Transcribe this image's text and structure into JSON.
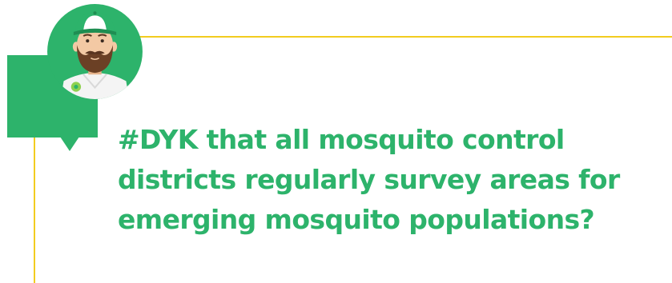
{
  "headline": {
    "lines": [
      "#DYK that all mosquito control",
      "districts regularly survey areas for",
      "emerging mosquito populations?"
    ]
  },
  "colors": {
    "brand_green": "#2db36b",
    "accent_yellow": "#f2cc1f",
    "skin": "#f3c9a4",
    "beard": "#6b4025"
  },
  "avatar": {
    "icon": "mascot-avatar-icon"
  }
}
